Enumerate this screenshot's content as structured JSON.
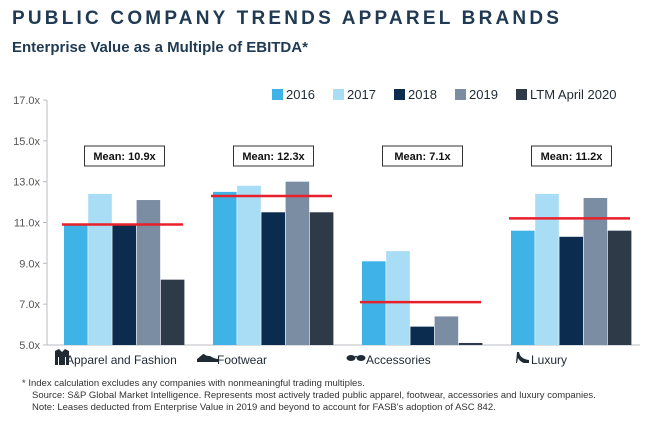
{
  "header": {
    "title": "PUBLIC COMPANY TRENDS APPAREL BRANDS",
    "subtitle": "Enterprise Value as a Multiple of EBITDA*"
  },
  "chart_data": {
    "type": "bar",
    "title": "PUBLIC COMPANY TRENDS APPAREL BRANDS",
    "subtitle": "Enterprise Value as a Multiple of EBITDA*",
    "categories": [
      "Apparel and Fashion",
      "Footwear",
      "Accessories",
      "Luxury"
    ],
    "category_icons": [
      "jacket-icon",
      "shoe-icon",
      "sunglasses-icon",
      "heel-icon"
    ],
    "series": [
      {
        "name": "2016",
        "color": "#3fb3e6",
        "values": [
          10.9,
          12.5,
          9.1,
          10.6
        ]
      },
      {
        "name": "2017",
        "color": "#a9dcf5",
        "values": [
          12.4,
          12.8,
          9.6,
          12.4
        ]
      },
      {
        "name": "2018",
        "color": "#0c2c4f",
        "values": [
          10.9,
          11.5,
          5.9,
          10.3
        ]
      },
      {
        "name": "2019",
        "color": "#7b8da3",
        "values": [
          12.1,
          13.0,
          6.4,
          12.2
        ]
      },
      {
        "name": "LTM April 2020",
        "color": "#2e3a48",
        "values": [
          8.2,
          11.5,
          5.1,
          10.6
        ]
      }
    ],
    "means": [
      10.9,
      12.3,
      7.1,
      11.2
    ],
    "mean_labels": [
      "Mean: 10.9x",
      "Mean: 12.3x",
      "Mean: 7.1x",
      "Mean: 11.2x"
    ],
    "mean_line_color": "#e8202a",
    "ylim": [
      5.0,
      17.0
    ],
    "yticks": [
      5.0,
      7.0,
      9.0,
      11.0,
      13.0,
      15.0,
      17.0
    ],
    "ytick_labels": [
      "5.0x",
      "7.0x",
      "9.0x",
      "11.0x",
      "13.0x",
      "15.0x",
      "17.0x"
    ],
    "legend_position": "top-right",
    "grid": false,
    "xlabel": "",
    "ylabel": ""
  },
  "footnotes": [
    "* Index calculation excludes any companies with nonmeaningful trading multiples.",
    "Source: S&P Global Market Intelligence. Represents most actively traded public apparel, footwear, accessories and luxury companies.",
    "Note: Leases deducted from Enterprise Value in 2019 and beyond to account for FASB's adoption of ASC 842."
  ]
}
